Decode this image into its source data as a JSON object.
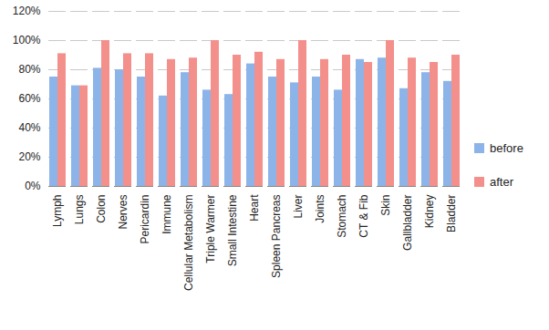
{
  "chart_data": {
    "type": "bar",
    "categories": [
      "Lymph",
      "Lungs",
      "Colon",
      "Nerves",
      "Pericardin",
      "Immune",
      "Cellular Metabolism",
      "Triple Warmer",
      "Small Intestine",
      "Heart",
      "Spleen Pancreas",
      "Liver",
      "Joints",
      "Stomach",
      "CT & Fib",
      "Skin",
      "Gallbladder",
      "Kidney",
      "Bladder"
    ],
    "series": [
      {
        "name": "before",
        "color": "#8db4e8",
        "values": [
          75,
          69,
          81,
          80,
          75,
          62,
          78,
          66,
          63,
          84,
          75,
          71,
          75,
          66,
          87,
          88,
          67,
          78,
          72
        ]
      },
      {
        "name": "after",
        "color": "#f4908c",
        "values": [
          91,
          69,
          100,
          91,
          91,
          87,
          88,
          100,
          90,
          92,
          87,
          100,
          87,
          90,
          85,
          100,
          88,
          85,
          90
        ]
      }
    ],
    "ylim": [
      0,
      120
    ],
    "yticks": [
      {
        "value": 0,
        "label": "0%"
      },
      {
        "value": 20,
        "label": "20%"
      },
      {
        "value": 40,
        "label": "40%"
      },
      {
        "value": 60,
        "label": "60%"
      },
      {
        "value": 80,
        "label": "80%"
      },
      {
        "value": 100,
        "label": "100%"
      },
      {
        "value": 120,
        "label": "120%"
      }
    ],
    "grid": true,
    "legend": "right"
  }
}
